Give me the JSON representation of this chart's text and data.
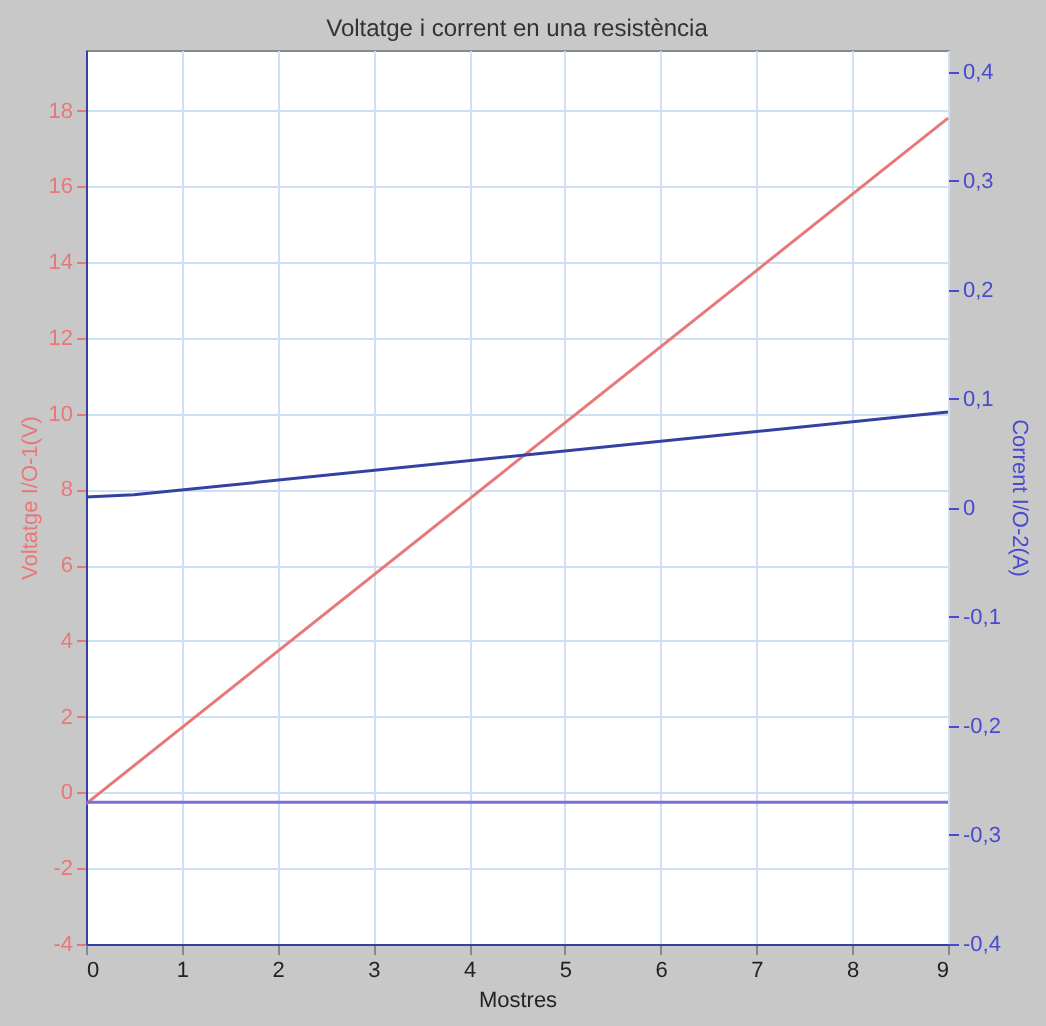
{
  "chart_data": {
    "type": "line",
    "title": "Voltatge i corrent en una resistència",
    "xlabel": "Mostres",
    "ylabel": "Voltatge I/O-1(V)",
    "y2label": "Corrent I/O-2(A)",
    "x": [
      0,
      9
    ],
    "series": [
      {
        "color": "#e87878",
        "values": [
          -0.3,
          17.8
        ]
      },
      {
        "color": "#3341a0",
        "axis": "y2",
        "x": [
          0,
          0.5,
          9
        ],
        "values": [
          0.01,
          0.012,
          0.088
        ]
      },
      {
        "color": "#7a70d8",
        "axis": "y2",
        "x": [
          0,
          9
        ],
        "values": [
          -0.27,
          -0.27
        ]
      }
    ],
    "xlim": [
      0,
      9
    ],
    "xticks": [
      0,
      1,
      2,
      3,
      4,
      5,
      6,
      7,
      8,
      9
    ],
    "ylim": [
      -4,
      19.6
    ],
    "yticks": [
      -4,
      -2,
      0,
      2,
      4,
      6,
      8,
      10,
      12,
      14,
      16,
      18
    ],
    "y2lim": [
      -0.4,
      0.42
    ],
    "y2ticks": [
      {
        "value": -0.4,
        "label": "-0,4"
      },
      {
        "value": -0.3,
        "label": "-0,3"
      },
      {
        "value": -0.2,
        "label": "-0,2"
      },
      {
        "value": -0.1,
        "label": "-0,1"
      },
      0,
      {
        "value": 0.1,
        "label": "0,1"
      },
      {
        "value": 0.2,
        "label": "0,2"
      },
      {
        "value": 0.3,
        "label": "0,3"
      },
      {
        "value": 0.4,
        "label": "0,4"
      }
    ],
    "grid": true,
    "line_style": "solid",
    "marker": "none"
  }
}
